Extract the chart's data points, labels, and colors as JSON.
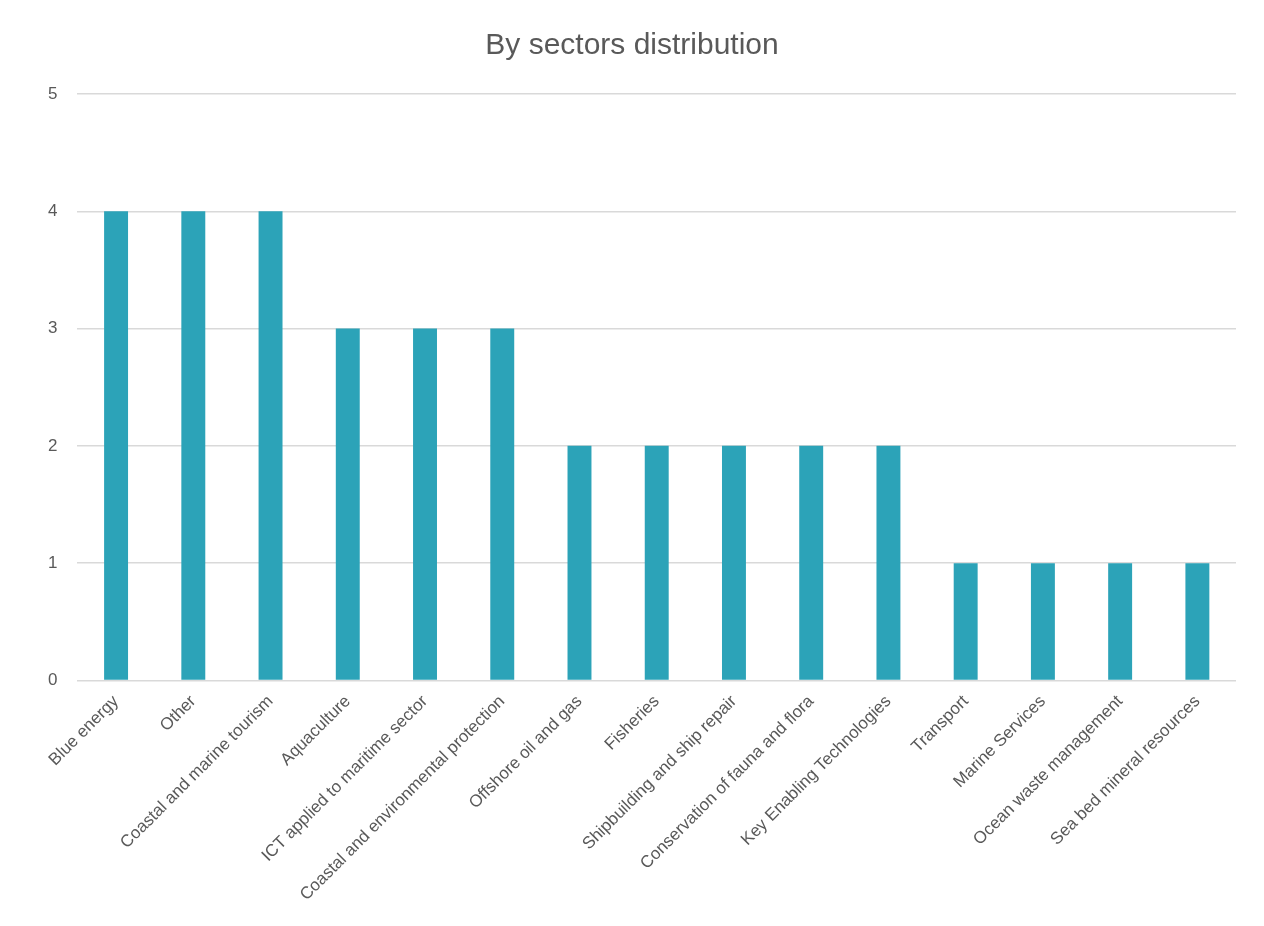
{
  "chart_data": {
    "type": "bar",
    "title": "By sectors distribution",
    "categories": [
      "Blue energy",
      "Other",
      "Coastal and marine tourism",
      "Aquaculture",
      "ICT applied to maritime sector",
      "Coastal and environmental protection",
      "Offshore oil and gas",
      "Fisheries",
      "Shipbuilding and ship repair",
      "Conservation of fauna and flora",
      "Key Enabling Technologies",
      "Transport",
      "Marine Services",
      "Ocean waste management",
      "Sea bed mineral resources"
    ],
    "values": [
      4,
      4,
      4,
      3,
      3,
      3,
      2,
      2,
      2,
      2,
      2,
      1,
      1,
      1,
      1
    ],
    "color": "#2ca3b8",
    "ylim": [
      0,
      5
    ],
    "yticks": [
      0,
      1,
      2,
      3,
      4,
      5
    ],
    "grid": "y",
    "legend": false
  }
}
